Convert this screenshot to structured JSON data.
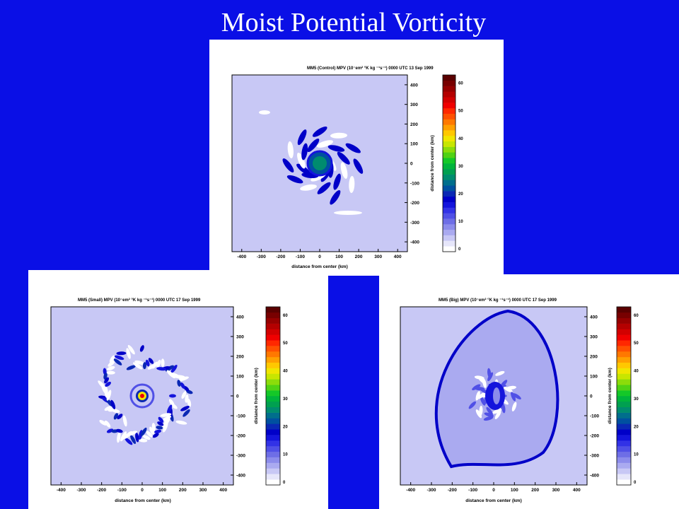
{
  "slide": {
    "title": "Moist Potential Vorticity"
  },
  "colormap": [
    "#ffffff",
    "#e6e6fa",
    "#c8c8f5",
    "#aaaaf0",
    "#8c8ceb",
    "#6e6ee6",
    "#5050e6",
    "#3232e6",
    "#1414dc",
    "#0000c8",
    "#0a28b4",
    "#0050a0",
    "#006e8c",
    "#008c6e",
    "#00a050",
    "#00b43c",
    "#14c828",
    "#50d214",
    "#8cdc0a",
    "#c8e600",
    "#f0e600",
    "#ffc800",
    "#ffa000",
    "#ff7800",
    "#ff5000",
    "#ff2800",
    "#f00000",
    "#d20000",
    "#b40000",
    "#960000",
    "#780000",
    "#5a0000"
  ],
  "panels": [
    {
      "id": "control",
      "title": "MM5 (Control) MPV (10⁻em² °K kg ⁻¹s⁻¹) 0000 UTC 13 Sep 1999",
      "xlabel": "distance from center (km)",
      "ylabel": "distance from center (km)",
      "x_ticks": [
        "-400",
        "-300",
        "-200",
        "-100",
        "0",
        "100",
        "200",
        "300",
        "400"
      ],
      "y_ticks": [
        "400",
        "300",
        "200",
        "100",
        "0",
        "-100",
        "-200",
        "-300",
        "-400"
      ],
      "colorbar_ticks": [
        "0",
        "10",
        "20",
        "30",
        "40",
        "50",
        "60"
      ],
      "pattern": "control"
    },
    {
      "id": "small",
      "title": "MM5 (Small) MPV (10⁻em² °K kg ⁻¹s⁻¹) 0000 UTC 17 Sep 1999",
      "xlabel": "distance from center (km)",
      "ylabel": "distance from center (km)",
      "x_ticks": [
        "-400",
        "-300",
        "-200",
        "-100",
        "0",
        "100",
        "200",
        "300",
        "400"
      ],
      "y_ticks": [
        "400",
        "300",
        "200",
        "100",
        "0",
        "-100",
        "-200",
        "-300",
        "-400"
      ],
      "colorbar_ticks": [
        "0",
        "10",
        "20",
        "30",
        "40",
        "50",
        "60"
      ],
      "pattern": "small"
    },
    {
      "id": "big",
      "title": "MM5 (Big) MPV (10⁻em² °K kg ⁻¹s⁻¹) 0000 UTC 17 Sep 1999",
      "xlabel": "distance from center (km)",
      "ylabel": "distance from center (km)",
      "x_ticks": [
        "-400",
        "-300",
        "-200",
        "-100",
        "0",
        "100",
        "200",
        "300",
        "400"
      ],
      "y_ticks": [
        "400",
        "300",
        "200",
        "100",
        "0",
        "-100",
        "-200",
        "-300",
        "-400"
      ],
      "colorbar_ticks": [
        "0",
        "10",
        "20",
        "30",
        "40",
        "50",
        "60"
      ],
      "pattern": "big"
    }
  ]
}
